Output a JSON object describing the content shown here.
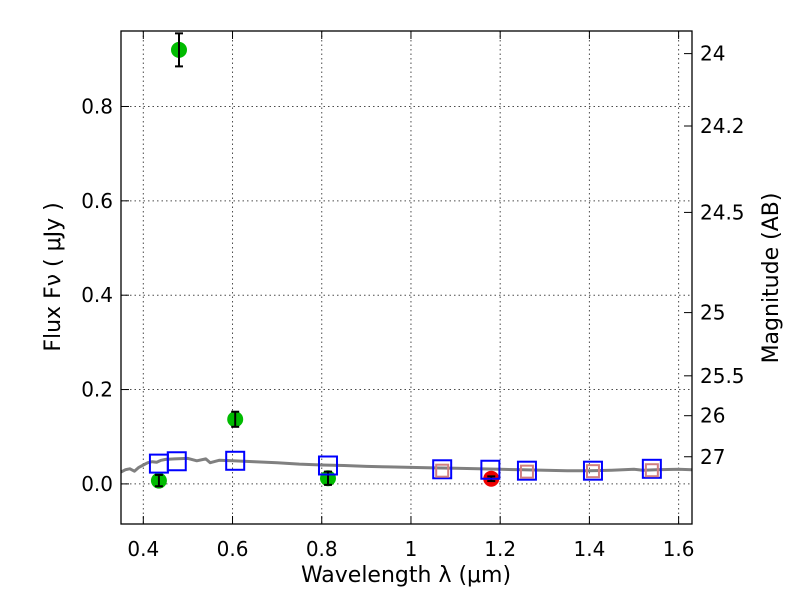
{
  "chart_data": {
    "type": "scatter",
    "title": "",
    "xlabel": "Wavelength  λ (μm)",
    "ylabel": "Flux  Fν  ( μJy )",
    "y2label": "Magnitude (AB)",
    "xlim": [
      0.35,
      1.63
    ],
    "ylim": [
      -0.085,
      0.96
    ],
    "x_ticks": [
      0.4,
      0.6,
      0.8,
      1.0,
      1.2,
      1.4,
      1.6
    ],
    "x_tick_labels": [
      "0.4",
      "0.6",
      "0.8",
      "1",
      "1.2",
      "1.4",
      "1.6"
    ],
    "y_ticks": [
      0.0,
      0.2,
      0.4,
      0.6,
      0.8
    ],
    "y_tick_labels": [
      "0.0",
      "0.2",
      "0.4",
      "0.6",
      "0.8"
    ],
    "mag_ticks": [
      24,
      24.2,
      24.5,
      25,
      25.5,
      26,
      27
    ],
    "mag_tick_labels": [
      "24",
      "24.2",
      "24.5",
      "25",
      "25.5",
      "26",
      "27"
    ],
    "grid": true,
    "series": [
      {
        "name": "observed (green)",
        "color": "#00bb00",
        "points": [
          {
            "x": 0.435,
            "y": 0.007,
            "err": 0.012
          },
          {
            "x": 0.48,
            "y": 0.92,
            "err": 0.035
          },
          {
            "x": 0.606,
            "y": 0.137,
            "err": 0.016
          },
          {
            "x": 0.814,
            "y": 0.012,
            "err": 0.014
          }
        ]
      },
      {
        "name": "observed (red)",
        "color": "#ee0000",
        "points": [
          {
            "x": 1.18,
            "y": 0.011,
            "err": 0.005
          }
        ]
      },
      {
        "name": "model photometry (blue squares)",
        "color": "#0000ff",
        "points": [
          {
            "x": 0.435,
            "y": 0.043
          },
          {
            "x": 0.475,
            "y": 0.048
          },
          {
            "x": 0.606,
            "y": 0.049
          },
          {
            "x": 0.814,
            "y": 0.039
          },
          {
            "x": 1.07,
            "y": 0.031
          },
          {
            "x": 1.178,
            "y": 0.03
          },
          {
            "x": 1.26,
            "y": 0.028
          },
          {
            "x": 1.408,
            "y": 0.028
          },
          {
            "x": 1.54,
            "y": 0.032
          }
        ]
      },
      {
        "name": "model photometry (pink squares)",
        "color": "#d08080",
        "points": [
          {
            "x": 1.07,
            "y": 0.028
          },
          {
            "x": 1.26,
            "y": 0.026
          },
          {
            "x": 1.408,
            "y": 0.027
          },
          {
            "x": 1.54,
            "y": 0.029
          }
        ]
      },
      {
        "name": "model SED",
        "color": "#808080",
        "line": [
          [
            0.35,
            0.025
          ],
          [
            0.36,
            0.03
          ],
          [
            0.37,
            0.032
          ],
          [
            0.38,
            0.027
          ],
          [
            0.39,
            0.035
          ],
          [
            0.4,
            0.04
          ],
          [
            0.41,
            0.045
          ],
          [
            0.42,
            0.047
          ],
          [
            0.43,
            0.046
          ],
          [
            0.44,
            0.05
          ],
          [
            0.45,
            0.052
          ],
          [
            0.47,
            0.053
          ],
          [
            0.5,
            0.054
          ],
          [
            0.52,
            0.049
          ],
          [
            0.54,
            0.053
          ],
          [
            0.55,
            0.045
          ],
          [
            0.57,
            0.05
          ],
          [
            0.6,
            0.049
          ],
          [
            0.65,
            0.047
          ],
          [
            0.7,
            0.045
          ],
          [
            0.75,
            0.042
          ],
          [
            0.8,
            0.04
          ],
          [
            0.85,
            0.039
          ],
          [
            0.9,
            0.037
          ],
          [
            0.95,
            0.036
          ],
          [
            1.0,
            0.035
          ],
          [
            1.05,
            0.034
          ],
          [
            1.1,
            0.033
          ],
          [
            1.15,
            0.032
          ],
          [
            1.2,
            0.031
          ],
          [
            1.25,
            0.03
          ],
          [
            1.3,
            0.029
          ],
          [
            1.35,
            0.028
          ],
          [
            1.4,
            0.028
          ],
          [
            1.45,
            0.029
          ],
          [
            1.5,
            0.031
          ],
          [
            1.52,
            0.029
          ],
          [
            1.55,
            0.03
          ],
          [
            1.6,
            0.031
          ],
          [
            1.63,
            0.03
          ]
        ]
      }
    ]
  }
}
